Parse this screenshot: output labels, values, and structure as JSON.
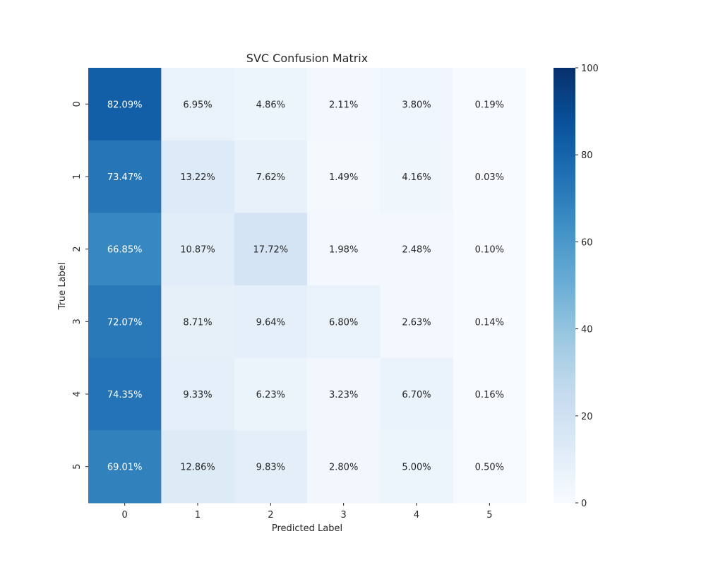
{
  "chart_data": {
    "type": "heatmap",
    "title": "SVC Confusion Matrix",
    "xlabel": "Predicted Label",
    "ylabel": "True Label",
    "x_categories": [
      "0",
      "1",
      "2",
      "3",
      "4",
      "5"
    ],
    "y_categories": [
      "0",
      "1",
      "2",
      "3",
      "4",
      "5"
    ],
    "values": [
      [
        82.09,
        6.95,
        4.86,
        2.11,
        3.8,
        0.19
      ],
      [
        73.47,
        13.22,
        7.62,
        1.49,
        4.16,
        0.03
      ],
      [
        66.85,
        10.87,
        17.72,
        1.98,
        2.48,
        0.1
      ],
      [
        72.07,
        8.71,
        9.64,
        6.8,
        2.63,
        0.14
      ],
      [
        74.35,
        9.33,
        6.23,
        3.23,
        6.7,
        0.16
      ],
      [
        69.01,
        12.86,
        9.83,
        2.8,
        5.0,
        0.5
      ]
    ],
    "cell_labels": [
      [
        "82.09%",
        "6.95%",
        "4.86%",
        "2.11%",
        "3.80%",
        "0.19%"
      ],
      [
        "73.47%",
        "13.22%",
        "7.62%",
        "1.49%",
        "4.16%",
        "0.03%"
      ],
      [
        "66.85%",
        "10.87%",
        "17.72%",
        "1.98%",
        "2.48%",
        "0.10%"
      ],
      [
        "72.07%",
        "8.71%",
        "9.64%",
        "6.80%",
        "2.63%",
        "0.14%"
      ],
      [
        "74.35%",
        "9.33%",
        "6.23%",
        "3.23%",
        "6.70%",
        "0.16%"
      ],
      [
        "69.01%",
        "12.86%",
        "9.83%",
        "2.80%",
        "5.00%",
        "0.50%"
      ]
    ],
    "colorbar": {
      "range": [
        0,
        100
      ],
      "ticks": [
        0,
        20,
        40,
        60,
        80,
        100
      ],
      "colormap": "Blues"
    },
    "grid": false,
    "legend": "colorbar-right"
  }
}
